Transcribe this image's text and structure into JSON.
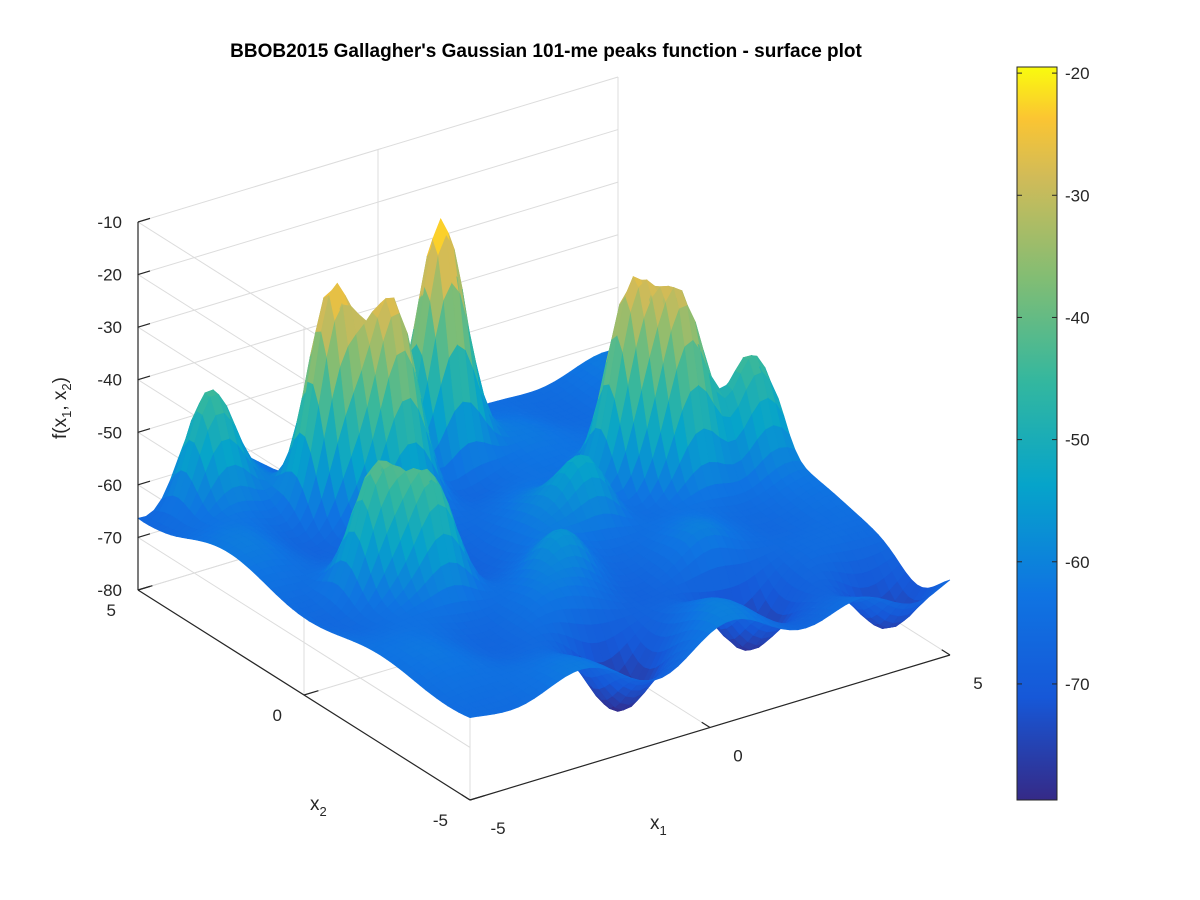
{
  "chart_data": {
    "type": "surface",
    "title": "BBOB2015 Gallagher's Gaussian 101-me peaks function - surface plot",
    "xlabel": "x",
    "xlabel_sub": "1",
    "ylabel": "x",
    "ylabel_sub": "2",
    "zlabel": "f(x",
    "zlabel_sub1": "1",
    "zlabel_mid": ", x",
    "zlabel_sub2": "2",
    "zlabel_end": ")",
    "xlim": [
      -5,
      5
    ],
    "ylim": [
      -5,
      5
    ],
    "zlim": [
      -80,
      -10
    ],
    "x_ticks": [
      "-5",
      "0",
      "5"
    ],
    "y_ticks": [
      "-5",
      "0",
      "5"
    ],
    "z_ticks": [
      "-80",
      "-70",
      "-60",
      "-50",
      "-40",
      "-30",
      "-20",
      "-10"
    ],
    "colorbar": {
      "colormap": "parula",
      "range": [
        -79.5,
        -19.5
      ],
      "ticks": [
        "-20",
        "-30",
        "-40",
        "-50",
        "-60",
        "-70"
      ]
    },
    "grid": true,
    "peaks": [
      {
        "x1": -2.1,
        "x2": 3.4,
        "f": -24
      },
      {
        "x1": -1.2,
        "x2": 2.8,
        "f": -31
      },
      {
        "x1": 0.5,
        "x2": 3.8,
        "f": -18
      },
      {
        "x1": 2.6,
        "x2": 1.2,
        "f": -29
      },
      {
        "x1": 3.3,
        "x2": 0.6,
        "f": -33
      },
      {
        "x1": -3.8,
        "x2": 4.6,
        "f": -45
      },
      {
        "x1": -3.4,
        "x2": 0.2,
        "f": -44
      },
      {
        "x1": -2.6,
        "x2": -0.4,
        "f": -46
      },
      {
        "x1": 1.1,
        "x2": 0.3,
        "f": -53
      },
      {
        "x1": 4.6,
        "x2": 0.4,
        "f": -44
      },
      {
        "x1": -0.4,
        "x2": -1.2,
        "f": -58
      },
      {
        "x1": 2.0,
        "x2": -2.2,
        "f": -60
      }
    ],
    "minima": [
      {
        "x1": -1.0,
        "x2": -3.5,
        "f": -79
      },
      {
        "x1": 2.0,
        "x2": -3.0,
        "f": -79
      },
      {
        "x1": 4.2,
        "x2": -4.1,
        "f": -78
      }
    ]
  }
}
